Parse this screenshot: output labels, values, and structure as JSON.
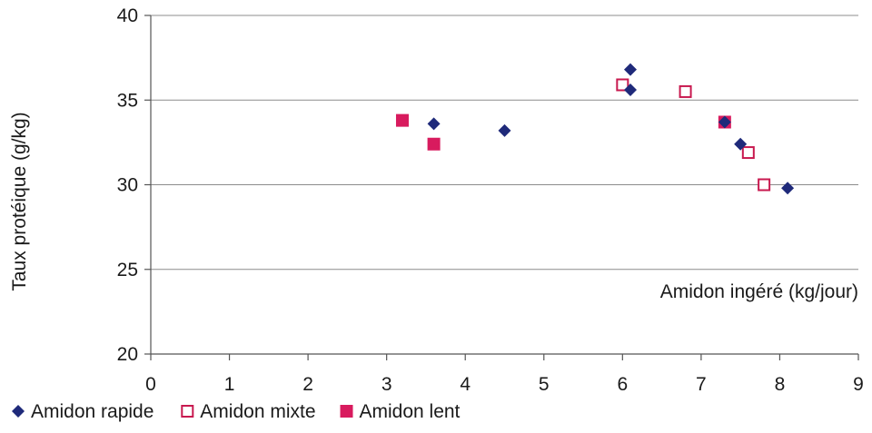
{
  "chart_data": {
    "type": "scatter",
    "xlabel": "Amidon ingéré (kg/jour)",
    "ylabel": "Taux protéique (g/kg)",
    "xlim": [
      0,
      9
    ],
    "ylim": [
      20,
      40
    ],
    "x_ticks": [
      "0",
      "1",
      "2",
      "3",
      "4",
      "5",
      "6",
      "7",
      "8",
      "9"
    ],
    "y_ticks": [
      "20",
      "25",
      "30",
      "35",
      "40"
    ],
    "grid": "horizontal",
    "legend_position": "bottom",
    "series": [
      {
        "name": "Amidon rapide",
        "marker": "diamond",
        "color": "#1f2a7a",
        "points": [
          [
            3.6,
            33.6
          ],
          [
            4.5,
            33.2
          ],
          [
            6.1,
            36.8
          ],
          [
            6.1,
            35.6
          ],
          [
            7.3,
            33.7
          ],
          [
            7.5,
            32.4
          ],
          [
            8.1,
            29.8
          ]
        ]
      },
      {
        "name": "Amidon mixte",
        "marker": "square-open",
        "color": "#c8194f",
        "points": [
          [
            6.0,
            35.9
          ],
          [
            6.8,
            35.5
          ],
          [
            7.6,
            31.9
          ],
          [
            7.8,
            30.0
          ]
        ]
      },
      {
        "name": "Amidon lent",
        "marker": "square-filled",
        "color": "#d81b5e",
        "points": [
          [
            3.2,
            33.8
          ],
          [
            3.6,
            32.4
          ],
          [
            7.3,
            33.7
          ]
        ]
      }
    ]
  }
}
